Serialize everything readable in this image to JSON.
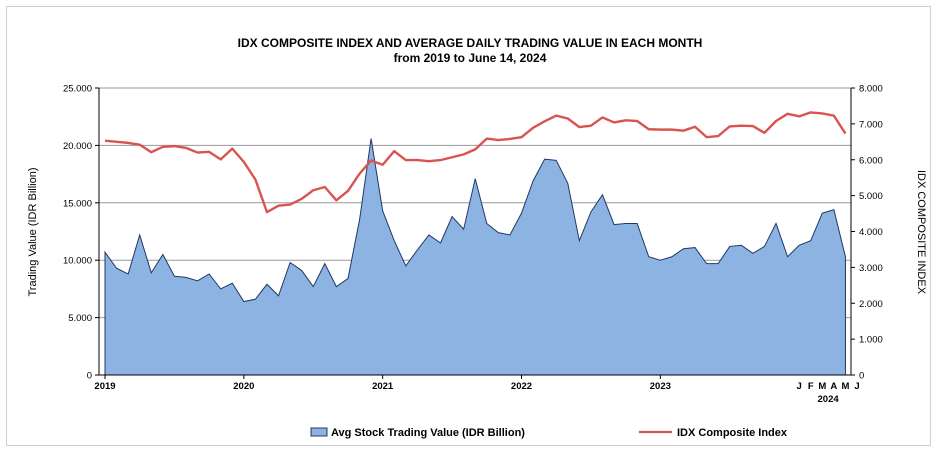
{
  "chart_data": {
    "type": "area+line",
    "title": "IDX COMPOSITE INDEX AND AVERAGE DAILY TRADING VALUE IN EACH MONTH",
    "subtitle": "from 2019 to June 14, 2024",
    "ylabel_left": "Trading Value (IDR Billion)",
    "ylabel_right": "IDX COMPOSITE INDEX",
    "ylim_left": [
      0,
      25000
    ],
    "ylim_right": [
      0,
      8000
    ],
    "yticks_left": [
      "0",
      "5.000",
      "10.000",
      "15.000",
      "20.000",
      "25.000"
    ],
    "yticks_right": [
      "0",
      "1.000",
      "2.000",
      "3.000",
      "4.000",
      "5.000",
      "6.000",
      "7.000",
      "8.000"
    ],
    "year_labels": [
      {
        "label": "2019",
        "index": 0
      },
      {
        "label": "2020",
        "index": 12
      },
      {
        "label": "2021",
        "index": 24
      },
      {
        "label": "2022",
        "index": 36
      },
      {
        "label": "2023",
        "index": 48
      }
    ],
    "month_labels_2024": [
      {
        "label": "J",
        "index": 60
      },
      {
        "label": "F",
        "index": 61
      },
      {
        "label": "M",
        "index": 62
      },
      {
        "label": "A",
        "index": 63
      },
      {
        "label": "M",
        "index": 64
      },
      {
        "label": "J",
        "index": 65
      }
    ],
    "year_2024_label": "2024",
    "grid": "horizontal",
    "legend_position": "bottom",
    "colors": {
      "area_fill": "#8db3e2",
      "area_stroke": "#1f3864",
      "line": "#d9534f",
      "grid": "#999999"
    },
    "series": [
      {
        "name": "Avg Stock Trading Value (IDR Billion)",
        "type": "area",
        "axis": "left",
        "values": [
          10700,
          9300,
          8800,
          12200,
          8900,
          10500,
          8600,
          8500,
          8200,
          8800,
          7500,
          8000,
          6400,
          6600,
          7900,
          6900,
          9800,
          9100,
          7700,
          9700,
          7700,
          8400,
          13500,
          20600,
          14300,
          11700,
          9500,
          10900,
          12200,
          11500,
          13800,
          12700,
          17100,
          13200,
          12400,
          12200,
          14100,
          16900,
          18800,
          18700,
          16700,
          11700,
          14200,
          15700,
          13100,
          13200,
          13200,
          10300,
          10000,
          10300,
          11000,
          11100,
          9700,
          9700,
          11200,
          11300,
          10600,
          11200,
          13200,
          10300,
          11300,
          11700,
          14100,
          14400,
          10300
        ]
      },
      {
        "name": "IDX Composite Index",
        "type": "line",
        "axis": "right",
        "values": [
          6530,
          6500,
          6470,
          6420,
          6210,
          6360,
          6380,
          6330,
          6200,
          6220,
          6010,
          6310,
          5940,
          5450,
          4540,
          4720,
          4750,
          4910,
          5150,
          5240,
          4870,
          5130,
          5610,
          5980,
          5860,
          6240,
          5990,
          5990,
          5960,
          5990,
          6070,
          6150,
          6290,
          6590,
          6550,
          6580,
          6630,
          6890,
          7070,
          7230,
          7150,
          6910,
          6950,
          7180,
          7040,
          7100,
          7080,
          6850,
          6840,
          6840,
          6810,
          6920,
          6630,
          6660,
          6930,
          6950,
          6940,
          6750,
          7080,
          7280,
          7210,
          7320,
          7290,
          7230,
          6730
        ]
      }
    ]
  }
}
